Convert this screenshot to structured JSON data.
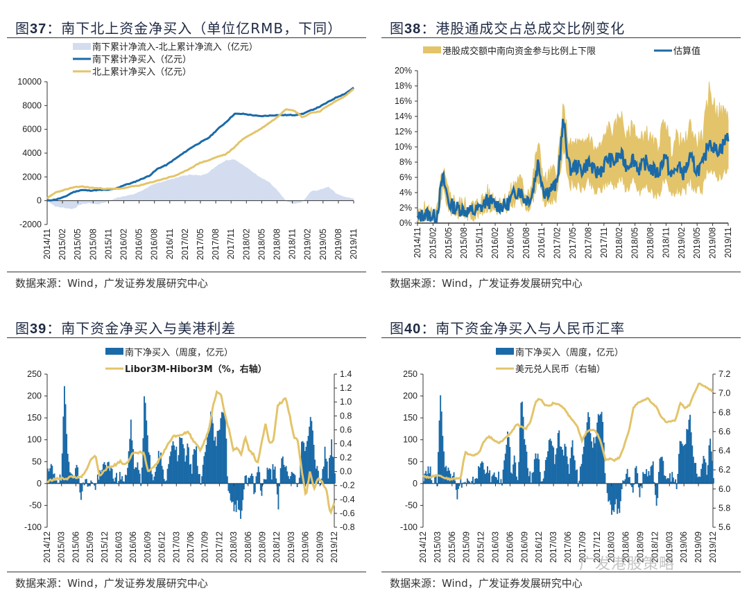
{
  "colors": {
    "blue": "#1b6aa8",
    "gold": "#e3c46a",
    "lightblue": "#d3ddef",
    "axis": "#333333"
  },
  "source_text": "数据来源：Wind，广发证券发展研究中心",
  "watermark": "广发港股策略",
  "chart_data": [
    {
      "id": "fig37",
      "type": "line",
      "title_prefix": "图",
      "title_num": "37",
      "title_text": "：南下北上资金净买入（单位亿RMB，下同）",
      "xlabel": "",
      "ylabel": "",
      "ylim": [
        -2000,
        10000
      ],
      "yticks": [
        -2000,
        0,
        2000,
        4000,
        6000,
        8000,
        10000
      ],
      "xticks": [
        "2014/11",
        "2015/02",
        "2015/05",
        "2015/08",
        "2015/11",
        "2016/02",
        "2016/05",
        "2016/08",
        "2016/11",
        "2017/02",
        "2017/05",
        "2017/08",
        "2017/11",
        "2018/02",
        "2018/05",
        "2018/08",
        "2018/11",
        "2019/02",
        "2019/05",
        "2019/08",
        "2019/11"
      ],
      "legend": [
        "南下累计净流入-北上累计净流入（亿元）",
        "南下累计净买入（亿元）",
        "北上累计净买入（亿元）"
      ],
      "legend_position": "top-left",
      "series": [
        {
          "name": "南下累计净流入-北上累计净流入（亿元）",
          "kind": "area",
          "values": [
            0,
            -500,
            -600,
            -700,
            -300,
            -200,
            -300,
            -100,
            200,
            400,
            500,
            800,
            1200,
            1500,
            1700,
            1900,
            2100,
            2200,
            2100,
            2400,
            3000,
            3400,
            3500,
            3000,
            2500,
            2000,
            1600,
            900,
            0,
            -300,
            -100,
            800,
            900,
            1200,
            600,
            300,
            200
          ]
        },
        {
          "name": "南下累计净买入（亿元）",
          "kind": "line",
          "values": [
            0,
            100,
            300,
            700,
            900,
            850,
            900,
            900,
            1000,
            1300,
            1500,
            1800,
            2100,
            2700,
            3000,
            3500,
            4000,
            4500,
            4900,
            5300,
            6000,
            6600,
            7300,
            7300,
            7200,
            7100,
            7150,
            7200,
            7200,
            7200,
            7300,
            7600,
            7900,
            8300,
            8700,
            9000,
            9500
          ]
        },
        {
          "name": "北上累计净买入（亿元）",
          "kind": "line",
          "values": [
            200,
            700,
            900,
            1100,
            1200,
            1100,
            1050,
            1000,
            1000,
            1050,
            1200,
            1300,
            1500,
            1700,
            1900,
            2100,
            2400,
            2800,
            3200,
            3400,
            3700,
            3900,
            4500,
            5200,
            5600,
            6000,
            6500,
            7000,
            7700,
            7600,
            7000,
            7400,
            7500,
            8000,
            8400,
            8800,
            9400
          ]
        }
      ]
    },
    {
      "id": "fig38",
      "type": "line",
      "title_prefix": "图",
      "title_num": "38",
      "title_text": "：港股通成交占总成交比例变化",
      "xlabel": "",
      "ylabel": "",
      "ylim": [
        0,
        20
      ],
      "yticks": [
        "0%",
        "2%",
        "4%",
        "6%",
        "8%",
        "10%",
        "12%",
        "14%",
        "16%",
        "18%",
        "20%"
      ],
      "xticks": [
        "2014/11",
        "2015/02",
        "2015/05",
        "2015/08",
        "2015/11",
        "2016/02",
        "2016/05",
        "2016/08",
        "2016/11",
        "2017/02",
        "2017/05",
        "2017/08",
        "2017/11",
        "2018/02",
        "2018/05",
        "2018/08",
        "2018/11",
        "2019/02",
        "2019/05",
        "2019/08",
        "2019/11"
      ],
      "legend": [
        "港股成交额中南向资金参与比例上下限",
        "估算值"
      ],
      "legend_position": "top",
      "series": [
        {
          "name": "估算值",
          "kind": "line",
          "values": [
            0.5,
            1.2,
            1.0,
            0.8,
            6.0,
            2.5,
            2.0,
            1.8,
            1.5,
            1.5,
            2.0,
            3.0,
            2.5,
            2.3,
            2.2,
            3.5,
            4.5,
            3.0,
            3.5,
            8.0,
            4.0,
            4.5,
            5.0,
            13.5,
            7.0,
            7.5,
            7.0,
            8.0,
            6.5,
            7.0,
            8.5,
            8.0,
            9.0,
            7.5,
            8.5,
            7.0,
            8.0,
            7.0,
            6.5,
            9.0,
            6.0,
            7.5,
            6.5,
            8.5,
            7.0,
            7.5,
            11.0,
            9.5,
            10.0,
            11.5
          ]
        },
        {
          "name": "港股成交额中南向资金参与比例上下限",
          "kind": "band",
          "lower": [
            0.3,
            0.8,
            0.6,
            0.5,
            4.5,
            1.8,
            1.3,
            1.2,
            1.0,
            1.0,
            1.4,
            2.2,
            1.8,
            1.7,
            1.6,
            2.6,
            3.3,
            2.0,
            2.5,
            6.0,
            2.5,
            3.0,
            3.5,
            10.0,
            5.0,
            5.0,
            4.5,
            5.5,
            4.0,
            4.5,
            5.5,
            5.0,
            6.0,
            4.5,
            5.5,
            4.0,
            5.0,
            4.0,
            3.8,
            5.5,
            3.5,
            4.5,
            3.8,
            5.5,
            4.0,
            4.5,
            7.5,
            6.0,
            6.5,
            7.0
          ],
          "upper": [
            0.8,
            1.8,
            1.5,
            1.2,
            7.0,
            3.4,
            2.8,
            2.5,
            2.2,
            2.2,
            2.8,
            4.0,
            3.4,
            3.0,
            3.0,
            4.6,
            6.0,
            4.0,
            4.8,
            10.5,
            5.5,
            6.5,
            7.0,
            15.0,
            10.0,
            10.5,
            10.0,
            11.5,
            9.5,
            10.0,
            12.5,
            12.0,
            14.5,
            11.0,
            13.0,
            10.5,
            12.0,
            10.5,
            10.0,
            14.0,
            9.5,
            11.5,
            10.0,
            13.0,
            10.5,
            11.5,
            17.5,
            15.0,
            14.5,
            14.5
          ]
        }
      ]
    },
    {
      "id": "fig39",
      "type": "bar",
      "title_prefix": "图",
      "title_num": "39",
      "title_text": "：南下资金净买入与美港利差",
      "xlabel": "",
      "ylabel": "",
      "ylim": [
        -100,
        250
      ],
      "y2lim": [
        -0.8,
        1.4
      ],
      "yticks": [
        -100,
        -50,
        0,
        50,
        100,
        150,
        200,
        250
      ],
      "y2ticks": [
        "-0.8",
        "-0.6",
        "-0.4",
        "-0.2",
        "0.0",
        "0.2",
        "0.4",
        "0.6",
        "0.8",
        "1.0",
        "1.2",
        "1.4"
      ],
      "xticks": [
        "2014/12",
        "2015/03",
        "2015/06",
        "2015/09",
        "2015/12",
        "2016/03",
        "2016/06",
        "2016/09",
        "2016/12",
        "2017/03",
        "2017/06",
        "2017/09",
        "2017/12",
        "2018/03",
        "2018/06",
        "2018/09",
        "2018/12",
        "2019/03",
        "2019/06",
        "2019/09",
        "2019/12"
      ],
      "legend": [
        "南下净买入（周度，亿元）",
        "Libor3M-Hibor3M（%，右轴）"
      ],
      "legend_position": "top",
      "series": [
        {
          "name": "南下净买入（周度，亿元）",
          "kind": "bar",
          "axis": "left",
          "values": [
            20,
            35,
            25,
            10,
            5,
            215,
            60,
            30,
            25,
            35,
            -30,
            5,
            0,
            5,
            -10,
            10,
            20,
            50,
            40,
            25,
            15,
            10,
            20,
            -5,
            50,
            140,
            20,
            60,
            -15,
            215,
            95,
            40,
            0,
            65,
            60,
            -10,
            30,
            95,
            100,
            50,
            130,
            60,
            80,
            20,
            100,
            40,
            0,
            70,
            130,
            160,
            90,
            110,
            170,
            175,
            -10,
            -50,
            -60,
            -40,
            -80,
            20,
            10,
            30,
            -30,
            50,
            -20,
            10,
            30,
            20,
            55,
            -70,
            60,
            45,
            15,
            25,
            10,
            -10,
            90,
            85,
            110,
            160,
            60,
            20,
            0,
            75,
            20,
            105,
            15
          ]
        },
        {
          "name": "Libor3M-Hibor3M（%，右轴）",
          "kind": "line",
          "axis": "right",
          "values": [
            -0.15,
            -0.12,
            -0.11,
            -0.1,
            -0.1,
            -0.1,
            -0.07,
            -0.08,
            -0.09,
            -0.05,
            0.05,
            0.2,
            0.22,
            -0.08,
            0.02,
            0.05,
            0.08,
            0.1,
            0.15,
            0.1,
            0.15,
            0.25,
            0.27,
            0.28,
            0.25,
            -0.02,
            0.05,
            0.1,
            0.2,
            0.3,
            0.4,
            0.5,
            0.52,
            0.53,
            0.55,
            0.57,
            0.45,
            0.4,
            0.3,
            0.45,
            0.6,
            0.95,
            1.15,
            1.1,
            0.8,
            0.6,
            0.3,
            0.35,
            0.25,
            0.5,
            0.3,
            0.25,
            0.1,
            0.4,
            0.7,
            0.4,
            0.45,
            0.95,
            1.0,
            1.05,
            0.8,
            0.5,
            0.45,
            0.0,
            -0.35,
            0.0,
            -0.25,
            -0.1,
            -0.15,
            -0.25,
            -0.6,
            -0.45
          ]
        }
      ]
    },
    {
      "id": "fig40",
      "type": "bar",
      "title_prefix": "图",
      "title_num": "40",
      "title_text": "：南下资金净买入与人民币汇率",
      "xlabel": "",
      "ylabel": "",
      "ylim": [
        -100,
        250
      ],
      "y2lim": [
        5.6,
        7.2
      ],
      "yticks": [
        -100,
        -50,
        0,
        50,
        100,
        150,
        200,
        250
      ],
      "y2ticks": [
        "5.6",
        "5.8",
        "6.0",
        "6.2",
        "6.4",
        "6.6",
        "6.8",
        "7.0",
        "7.2"
      ],
      "xticks": [
        "2014/12",
        "2015/03",
        "2015/06",
        "2015/09",
        "2015/12",
        "2016/03",
        "2016/06",
        "2016/09",
        "2016/12",
        "2017/03",
        "2017/06",
        "2017/09",
        "2017/12",
        "2018/03",
        "2018/06",
        "2018/09",
        "2018/12",
        "2019/03",
        "2019/06",
        "2019/09",
        "2019/12"
      ],
      "legend": [
        "南下净买入（周度，亿元）",
        "美元兑人民币（右轴）"
      ],
      "legend_position": "top",
      "series": [
        {
          "name": "南下净买入（周度，亿元）",
          "kind": "bar",
          "axis": "left",
          "values": [
            20,
            35,
            25,
            10,
            5,
            215,
            60,
            30,
            25,
            35,
            -30,
            5,
            0,
            5,
            -10,
            10,
            20,
            50,
            40,
            25,
            15,
            10,
            20,
            -5,
            50,
            140,
            20,
            60,
            -15,
            215,
            95,
            40,
            0,
            65,
            60,
            -10,
            30,
            95,
            100,
            50,
            130,
            60,
            80,
            20,
            100,
            40,
            0,
            70,
            130,
            160,
            90,
            110,
            170,
            175,
            -10,
            -50,
            -60,
            -40,
            -80,
            20,
            10,
            30,
            -30,
            50,
            -20,
            10,
            30,
            20,
            55,
            -70,
            60,
            45,
            15,
            25,
            10,
            -10,
            90,
            85,
            110,
            160,
            60,
            20,
            0,
            75,
            20,
            105,
            15
          ]
        },
        {
          "name": "美元兑人民币（右轴）",
          "kind": "line",
          "axis": "right",
          "values": [
            6.14,
            6.12,
            6.13,
            6.15,
            6.13,
            6.11,
            6.1,
            6.11,
            6.11,
            6.38,
            6.36,
            6.35,
            6.38,
            6.5,
            6.55,
            6.52,
            6.48,
            6.5,
            6.55,
            6.6,
            6.68,
            6.65,
            6.63,
            6.7,
            6.9,
            6.95,
            6.88,
            6.87,
            6.9,
            6.88,
            6.85,
            6.78,
            6.72,
            6.65,
            6.5,
            6.6,
            6.62,
            6.6,
            6.5,
            6.3,
            6.32,
            6.3,
            6.33,
            6.45,
            6.6,
            6.85,
            6.9,
            6.92,
            6.95,
            6.9,
            6.85,
            6.75,
            6.7,
            6.7,
            6.72,
            6.9,
            6.85,
            6.88,
            7.0,
            7.1,
            7.08,
            7.05,
            7.02
          ]
        }
      ]
    }
  ]
}
